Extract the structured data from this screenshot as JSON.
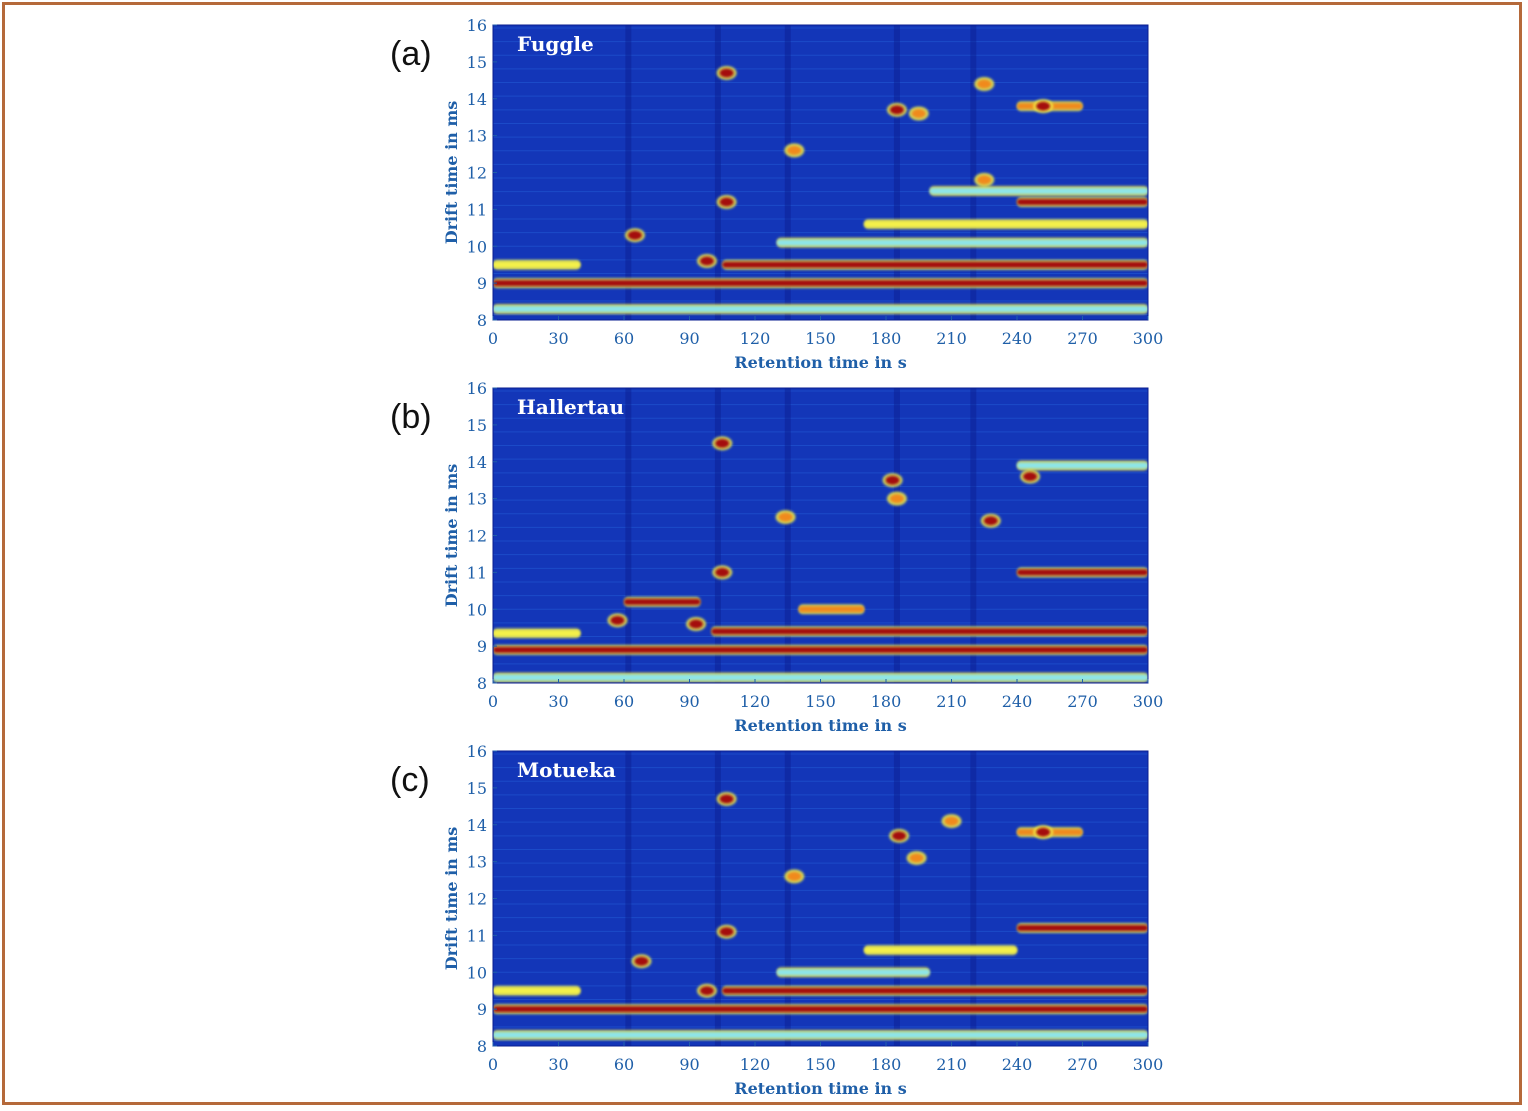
{
  "colors": {
    "frame_border": "#b5693a",
    "axis_text": "#1f5fa8",
    "plot_background": "#1336b8",
    "colormap": [
      "#0a1d8f",
      "#1336b8",
      "#1f63e0",
      "#34aef5",
      "#8ee5e8",
      "#f4f14a",
      "#f08a1c",
      "#a40f0f"
    ]
  },
  "chart_data": [
    {
      "type": "heatmap",
      "panel_label": "(a)",
      "title": "Fuggle",
      "xlabel": "Retention time in s",
      "ylabel": "Drift time in ms",
      "xlim": [
        0,
        300
      ],
      "ylim": [
        8,
        16
      ],
      "xticks": [
        "0",
        "30",
        "60",
        "90",
        "120",
        "150",
        "180",
        "210",
        "240",
        "270",
        "300"
      ],
      "yticks": [
        "8",
        "9",
        "10",
        "11",
        "12",
        "13",
        "14",
        "15",
        "16"
      ],
      "grid": false,
      "bands": [
        {
          "drift": 9.0,
          "x_start": 0,
          "x_end": 300,
          "intensity": 1.0
        },
        {
          "drift": 8.3,
          "x_start": 0,
          "x_end": 300,
          "intensity": 0.55
        },
        {
          "drift": 9.5,
          "x_start": 0,
          "x_end": 40,
          "intensity": 0.7
        },
        {
          "drift": 9.5,
          "x_start": 105,
          "x_end": 300,
          "intensity": 0.95
        },
        {
          "drift": 10.1,
          "x_start": 130,
          "x_end": 300,
          "intensity": 0.6
        },
        {
          "drift": 10.6,
          "x_start": 170,
          "x_end": 300,
          "intensity": 0.75
        },
        {
          "drift": 11.2,
          "x_start": 240,
          "x_end": 300,
          "intensity": 0.95
        },
        {
          "drift": 11.5,
          "x_start": 200,
          "x_end": 300,
          "intensity": 0.6
        },
        {
          "drift": 13.8,
          "x_start": 240,
          "x_end": 270,
          "intensity": 0.85
        }
      ],
      "peaks": [
        {
          "rt": 107,
          "drift": 14.7,
          "intensity": 1.0
        },
        {
          "rt": 107,
          "drift": 11.2,
          "intensity": 1.0
        },
        {
          "rt": 65,
          "drift": 10.3,
          "intensity": 0.95
        },
        {
          "rt": 98,
          "drift": 9.6,
          "intensity": 0.95
        },
        {
          "rt": 138,
          "drift": 12.6,
          "intensity": 0.9
        },
        {
          "rt": 185,
          "drift": 13.7,
          "intensity": 1.0
        },
        {
          "rt": 195,
          "drift": 13.6,
          "intensity": 0.9
        },
        {
          "rt": 225,
          "drift": 14.4,
          "intensity": 0.9
        },
        {
          "rt": 225,
          "drift": 11.8,
          "intensity": 0.85
        },
        {
          "rt": 252,
          "drift": 13.8,
          "intensity": 1.0
        }
      ]
    },
    {
      "type": "heatmap",
      "panel_label": "(b)",
      "title": "Hallertau",
      "xlabel": "Retention time in s",
      "ylabel": "Drift time in ms",
      "xlim": [
        0,
        300
      ],
      "ylim": [
        8,
        16
      ],
      "xticks": [
        "0",
        "30",
        "60",
        "90",
        "120",
        "150",
        "180",
        "210",
        "240",
        "270",
        "300"
      ],
      "yticks": [
        "8",
        "9",
        "10",
        "11",
        "12",
        "13",
        "14",
        "15",
        "16"
      ],
      "grid": false,
      "bands": [
        {
          "drift": 8.9,
          "x_start": 0,
          "x_end": 300,
          "intensity": 1.0
        },
        {
          "drift": 8.15,
          "x_start": 0,
          "x_end": 300,
          "intensity": 0.55
        },
        {
          "drift": 9.35,
          "x_start": 0,
          "x_end": 40,
          "intensity": 0.7
        },
        {
          "drift": 9.4,
          "x_start": 100,
          "x_end": 300,
          "intensity": 0.95
        },
        {
          "drift": 10.2,
          "x_start": 60,
          "x_end": 95,
          "intensity": 0.95
        },
        {
          "drift": 10.0,
          "x_start": 140,
          "x_end": 170,
          "intensity": 0.9
        },
        {
          "drift": 11.0,
          "x_start": 240,
          "x_end": 300,
          "intensity": 0.95
        },
        {
          "drift": 13.9,
          "x_start": 240,
          "x_end": 300,
          "intensity": 0.6
        }
      ],
      "peaks": [
        {
          "rt": 105,
          "drift": 14.5,
          "intensity": 1.0
        },
        {
          "rt": 105,
          "drift": 11.0,
          "intensity": 1.0
        },
        {
          "rt": 57,
          "drift": 9.7,
          "intensity": 1.0
        },
        {
          "rt": 93,
          "drift": 9.6,
          "intensity": 1.0
        },
        {
          "rt": 134,
          "drift": 12.5,
          "intensity": 0.9
        },
        {
          "rt": 183,
          "drift": 13.5,
          "intensity": 1.0
        },
        {
          "rt": 185,
          "drift": 13.0,
          "intensity": 0.9
        },
        {
          "rt": 228,
          "drift": 12.4,
          "intensity": 1.0
        },
        {
          "rt": 246,
          "drift": 13.6,
          "intensity": 1.0
        }
      ]
    },
    {
      "type": "heatmap",
      "panel_label": "(c)",
      "title": "Motueka",
      "xlabel": "Retention time in s",
      "ylabel": "Drift time in ms",
      "xlim": [
        0,
        300
      ],
      "ylim": [
        8,
        16
      ],
      "xticks": [
        "0",
        "30",
        "60",
        "90",
        "120",
        "150",
        "180",
        "210",
        "240",
        "270",
        "300"
      ],
      "yticks": [
        "8",
        "9",
        "10",
        "11",
        "12",
        "13",
        "14",
        "15",
        "16"
      ],
      "grid": false,
      "bands": [
        {
          "drift": 9.0,
          "x_start": 0,
          "x_end": 300,
          "intensity": 1.0
        },
        {
          "drift": 8.3,
          "x_start": 0,
          "x_end": 300,
          "intensity": 0.55
        },
        {
          "drift": 9.5,
          "x_start": 0,
          "x_end": 40,
          "intensity": 0.7
        },
        {
          "drift": 9.5,
          "x_start": 105,
          "x_end": 300,
          "intensity": 0.95
        },
        {
          "drift": 10.0,
          "x_start": 130,
          "x_end": 200,
          "intensity": 0.6
        },
        {
          "drift": 10.6,
          "x_start": 170,
          "x_end": 240,
          "intensity": 0.75
        },
        {
          "drift": 11.2,
          "x_start": 240,
          "x_end": 300,
          "intensity": 0.95
        },
        {
          "drift": 13.8,
          "x_start": 240,
          "x_end": 270,
          "intensity": 0.85
        }
      ],
      "peaks": [
        {
          "rt": 107,
          "drift": 14.7,
          "intensity": 1.0
        },
        {
          "rt": 107,
          "drift": 11.1,
          "intensity": 1.0
        },
        {
          "rt": 68,
          "drift": 10.3,
          "intensity": 0.95
        },
        {
          "rt": 98,
          "drift": 9.5,
          "intensity": 0.95
        },
        {
          "rt": 138,
          "drift": 12.6,
          "intensity": 0.9
        },
        {
          "rt": 186,
          "drift": 13.7,
          "intensity": 1.0
        },
        {
          "rt": 194,
          "drift": 13.1,
          "intensity": 0.9
        },
        {
          "rt": 210,
          "drift": 14.1,
          "intensity": 0.85
        },
        {
          "rt": 252,
          "drift": 13.8,
          "intensity": 1.0
        }
      ]
    }
  ]
}
